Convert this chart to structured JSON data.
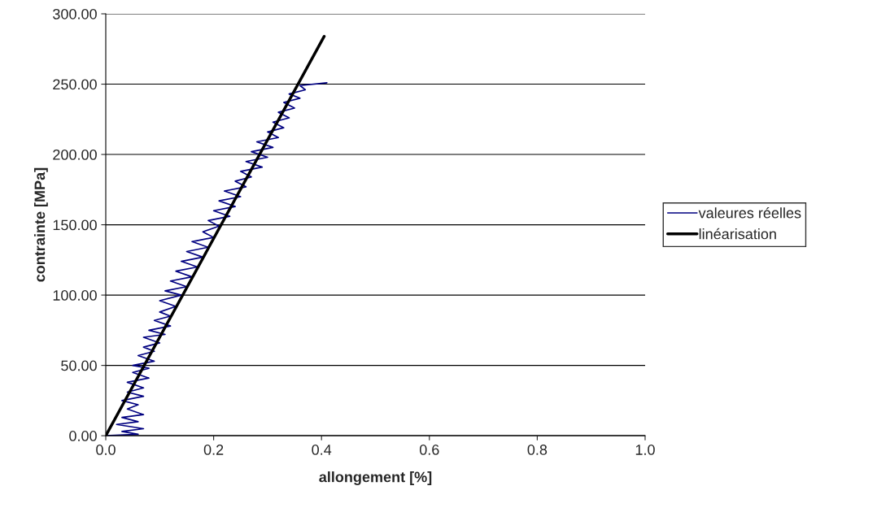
{
  "chart_data": {
    "type": "line",
    "xlabel": "allongement [%]",
    "ylabel": "contrainte [MPa]",
    "series": [
      {
        "name": "valeures réelles",
        "color": "#000080",
        "x": [
          0.0,
          0.06,
          0.03,
          0.07,
          0.02,
          0.06,
          0.03,
          0.07,
          0.04,
          0.06,
          0.03,
          0.07,
          0.04,
          0.07,
          0.04,
          0.08,
          0.05,
          0.08,
          0.05,
          0.09,
          0.06,
          0.09,
          0.07,
          0.1,
          0.07,
          0.11,
          0.08,
          0.12,
          0.09,
          0.12,
          0.1,
          0.13,
          0.1,
          0.14,
          0.11,
          0.15,
          0.12,
          0.16,
          0.13,
          0.17,
          0.14,
          0.18,
          0.15,
          0.19,
          0.16,
          0.2,
          0.18,
          0.21,
          0.19,
          0.23,
          0.2,
          0.24,
          0.21,
          0.25,
          0.22,
          0.26,
          0.24,
          0.27,
          0.25,
          0.29,
          0.26,
          0.3,
          0.27,
          0.31,
          0.28,
          0.32,
          0.3,
          0.33,
          0.31,
          0.34,
          0.32,
          0.35,
          0.33,
          0.36,
          0.34,
          0.37,
          0.36,
          0.41
        ],
        "values": [
          0,
          1,
          3,
          5,
          8,
          10,
          13,
          15,
          19,
          22,
          25,
          28,
          31,
          34,
          38,
          41,
          45,
          48,
          50,
          53,
          57,
          60,
          63,
          66,
          70,
          72,
          75,
          78,
          82,
          85,
          88,
          92,
          96,
          100,
          103,
          106,
          110,
          113,
          117,
          120,
          124,
          127,
          131,
          134,
          138,
          141,
          145,
          149,
          153,
          156,
          160,
          163,
          167,
          170,
          174,
          177,
          181,
          184,
          188,
          191,
          195,
          198,
          202,
          205,
          209,
          212,
          216,
          219,
          223,
          226,
          230,
          233,
          237,
          240,
          243,
          246,
          249,
          251
        ]
      },
      {
        "name": "linéarisation",
        "color": "#000000",
        "x": [
          0.0,
          0.405
        ],
        "values": [
          0,
          284
        ]
      }
    ],
    "xlim": [
      0,
      1
    ],
    "xticks": [
      {
        "value": 0,
        "label": "0.0"
      },
      {
        "value": 0.2,
        "label": "0.2"
      },
      {
        "value": 0.4,
        "label": "0.4"
      },
      {
        "value": 0.6,
        "label": "0.6"
      },
      {
        "value": 0.8,
        "label": "0.8"
      },
      {
        "value": 1,
        "label": "1.0"
      }
    ],
    "ylim": [
      0,
      300
    ],
    "yticks": [
      {
        "value": 0,
        "label": "0.00"
      },
      {
        "value": 50,
        "label": "50.00"
      },
      {
        "value": 100,
        "label": "100.00"
      },
      {
        "value": 150,
        "label": "150.00"
      },
      {
        "value": 200,
        "label": "200.00"
      },
      {
        "value": 250,
        "label": "250.00"
      },
      {
        "value": 300,
        "label": "300.00"
      }
    ],
    "grid": "y",
    "legend": "right",
    "marker": "none",
    "line_style": "solid"
  }
}
